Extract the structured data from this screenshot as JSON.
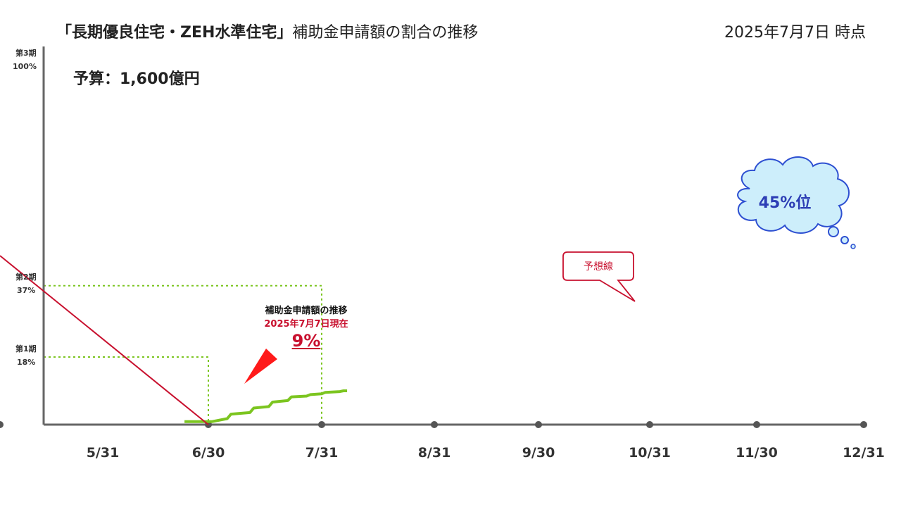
{
  "header": {
    "title_bold": "「長期優良住宅・ZEH水準住宅」",
    "title_rest": "補助金申請額の割合の推移",
    "date": "2025年7月7日 時点"
  },
  "budget": "予算：1,600億円",
  "annotation": {
    "line1": "補助金申請額の推移",
    "line2": "2025年7月7日現在",
    "line3": "9%"
  },
  "callout": "予想線",
  "cloud": "45%位",
  "colors": {
    "actual": "#7cc520",
    "forecast": "#c8102e",
    "phase": "#7cc520",
    "axis": "#666666",
    "cloud_fill": "#cdeefb",
    "cloud_stroke": "#2d4fd1"
  },
  "chart_data": {
    "type": "line",
    "x_ticks": [
      "5/31",
      "6/30",
      "7/31",
      "8/31",
      "9/30",
      "10/31",
      "11/30",
      "12/31"
    ],
    "ylim": [
      0,
      100
    ],
    "phases": [
      {
        "name": "第1期",
        "label": "18%",
        "value": 18,
        "end": "5/31"
      },
      {
        "name": "第2期",
        "label": "37%",
        "value": 37,
        "end": "6/30"
      },
      {
        "name": "第3期",
        "label": "100%",
        "value": 100,
        "end": "12/31"
      }
    ],
    "series": [
      {
        "type": "step",
        "x": [
          "5/24",
          "5/31",
          "6/1",
          "6/5",
          "6/6",
          "6/11",
          "6/12",
          "6/16",
          "6/17",
          "6/21",
          "6/22",
          "6/26",
          "6/27",
          "6/30",
          "7/1",
          "7/5",
          "7/6",
          "7/7"
        ],
        "y": [
          0.8,
          0.8,
          0.8,
          1.6,
          2.8,
          3.2,
          4.4,
          4.8,
          6.0,
          6.4,
          7.4,
          7.6,
          8.0,
          8.2,
          8.6,
          8.8,
          9.0,
          9.0
        ]
      },
      {
        "type": "linear",
        "x": [
          "5/31",
          "12/31"
        ],
        "y": [
          0,
          45
        ]
      }
    ]
  }
}
